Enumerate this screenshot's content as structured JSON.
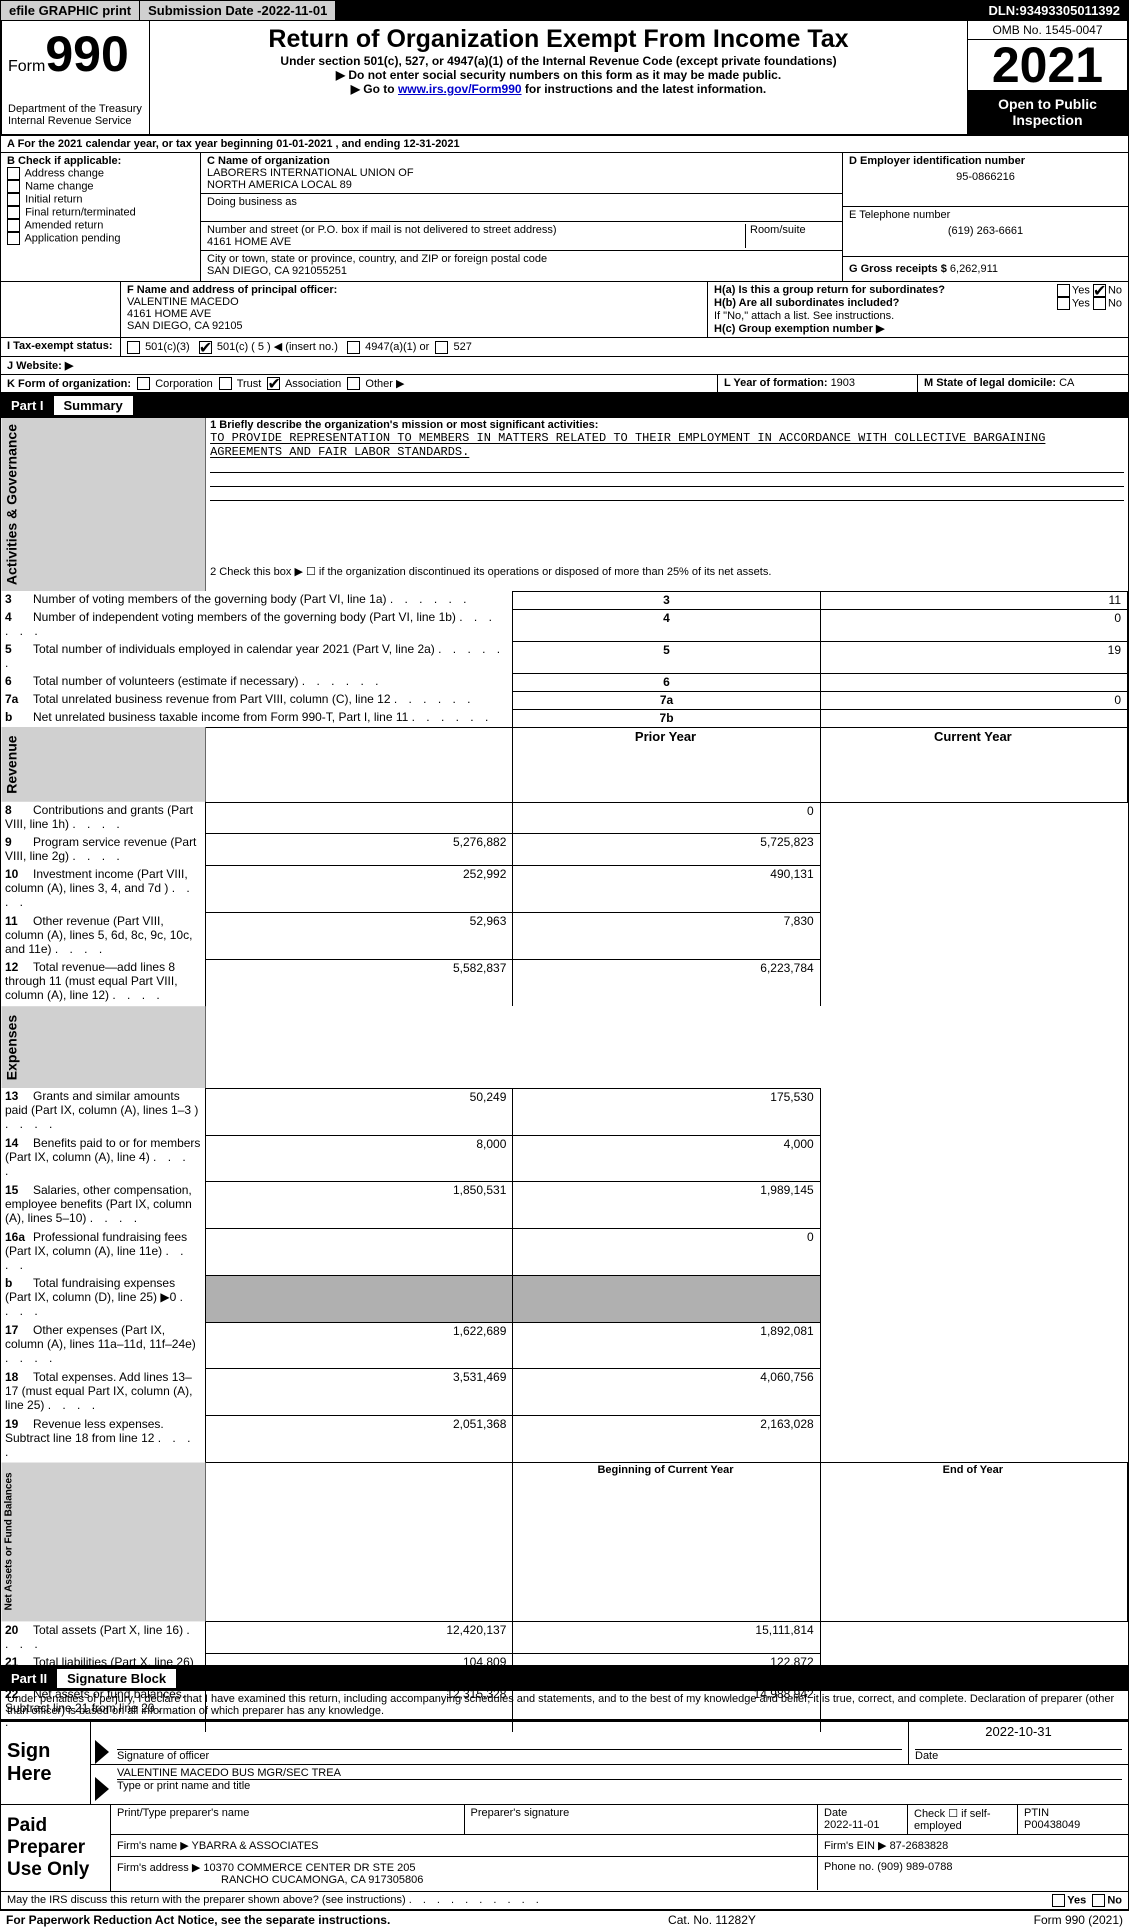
{
  "topbar": {
    "efile": "efile GRAPHIC",
    "print": "print",
    "subdate_label": "Submission Date - ",
    "subdate": "2022-11-01",
    "dln_label": "DLN: ",
    "dln": "93493305011392"
  },
  "header": {
    "form": "Form",
    "form_num": "990",
    "dept": "Department of the Treasury",
    "irs": "Internal Revenue Service",
    "title": "Return of Organization Exempt From Income Tax",
    "subtitle": "Under section 501(c), 527, or 4947(a)(1) of the Internal Revenue Code (except private foundations)",
    "note1": "▶ Do not enter social security numbers on this form as it may be made public.",
    "note2_pre": "▶ Go to ",
    "note2_link": "www.irs.gov/Form990",
    "note2_post": " for instructions and the latest information.",
    "omb": "OMB No. 1545-0047",
    "year": "2021",
    "open": "Open to Public Inspection"
  },
  "periodA": {
    "text_pre": "A For the 2021 calendar year, or tax year beginning ",
    "begin": "01-01-2021",
    "mid": " , and ending ",
    "end": "12-31-2021"
  },
  "sectionB": {
    "label": "B Check if applicable:",
    "items": [
      "Address change",
      "Name change",
      "Initial return",
      "Final return/terminated",
      "Amended return",
      "Application pending"
    ]
  },
  "sectionC": {
    "name_label": "C Name of organization",
    "name1": "LABORERS INTERNATIONAL UNION OF",
    "name2": "NORTH AMERICA LOCAL 89",
    "dba_label": "Doing business as",
    "street_label": "Number and street (or P.O. box if mail is not delivered to street address)",
    "room_label": "Room/suite",
    "street": "4161 HOME AVE",
    "city_label": "City or town, state or province, country, and ZIP or foreign postal code",
    "city": "SAN DIEGO, CA  921055251"
  },
  "sectionD": {
    "label": "D Employer identification number",
    "ein": "95-0866216",
    "phone_label": "E Telephone number",
    "phone": "(619) 263-6661",
    "gross_label": "G Gross receipts $ ",
    "gross": "6,262,911"
  },
  "sectionF": {
    "label": "F Name and address of principal officer:",
    "name": "VALENTINE MACEDO",
    "street": "4161 HOME AVE",
    "city": "SAN DIEGO, CA  92105"
  },
  "sectionH": {
    "ha": "H(a) Is this a group return for subordinates?",
    "hb": "H(b) Are all subordinates included?",
    "hb_note": "If \"No,\" attach a list. See instructions.",
    "hc": "H(c) Group exemption number ▶",
    "yes": "Yes",
    "no": "No"
  },
  "sectionI": {
    "label": "I Tax-exempt status:",
    "opt1": "501(c)(3)",
    "opt2": "501(c) ( 5 ) ◀ (insert no.)",
    "opt3": "4947(a)(1) or",
    "opt4": "527"
  },
  "sectionJ": {
    "label": "J  Website: ▶"
  },
  "sectionK": {
    "label": "K Form of organization:",
    "opts": [
      "Corporation",
      "Trust",
      "Association",
      "Other ▶"
    ],
    "checked_idx": 2
  },
  "sectionL": {
    "label": "L Year of formation: ",
    "val": "1903"
  },
  "sectionM": {
    "label": "M State of legal domicile: ",
    "val": "CA"
  },
  "part1": {
    "label": "Part I",
    "title": "Summary"
  },
  "summary": {
    "line1_label": "1   Briefly describe the organization's mission or most significant activities:",
    "mission": "TO PROVIDE REPRESENTATION TO MEMBERS IN MATTERS RELATED TO THEIR EMPLOYMENT IN ACCORDANCE WITH COLLECTIVE BARGAINING AGREEMENTS AND FAIR LABOR STANDARDS.",
    "line2": "2   Check this box ▶ ☐ if the organization discontinued its operations or disposed of more than 25% of its net assets.",
    "rows_act": [
      {
        "n": "3",
        "label": "Number of voting members of the governing body (Part VI, line 1a)",
        "box": "3",
        "val": "11"
      },
      {
        "n": "4",
        "label": "Number of independent voting members of the governing body (Part VI, line 1b)",
        "box": "4",
        "val": "0"
      },
      {
        "n": "5",
        "label": "Total number of individuals employed in calendar year 2021 (Part V, line 2a)",
        "box": "5",
        "val": "19"
      },
      {
        "n": "6",
        "label": "Total number of volunteers (estimate if necessary)",
        "box": "6",
        "val": ""
      },
      {
        "n": "7a",
        "label": "Total unrelated business revenue from Part VIII, column (C), line 12",
        "box": "7a",
        "val": "0"
      },
      {
        "n": "b",
        "label": "Net unrelated business taxable income from Form 990-T, Part I, line 11",
        "box": "7b",
        "val": ""
      }
    ],
    "hdr_prior": "Prior Year",
    "hdr_curr": "Current Year",
    "rows_rev": [
      {
        "n": "8",
        "label": "Contributions and grants (Part VIII, line 1h)",
        "p": "",
        "c": "0"
      },
      {
        "n": "9",
        "label": "Program service revenue (Part VIII, line 2g)",
        "p": "5,276,882",
        "c": "5,725,823"
      },
      {
        "n": "10",
        "label": "Investment income (Part VIII, column (A), lines 3, 4, and 7d )",
        "p": "252,992",
        "c": "490,131"
      },
      {
        "n": "11",
        "label": "Other revenue (Part VIII, column (A), lines 5, 6d, 8c, 9c, 10c, and 11e)",
        "p": "52,963",
        "c": "7,830"
      },
      {
        "n": "12",
        "label": "Total revenue—add lines 8 through 11 (must equal Part VIII, column (A), line 12)",
        "p": "5,582,837",
        "c": "6,223,784"
      }
    ],
    "rows_exp": [
      {
        "n": "13",
        "label": "Grants and similar amounts paid (Part IX, column (A), lines 1–3 )",
        "p": "50,249",
        "c": "175,530"
      },
      {
        "n": "14",
        "label": "Benefits paid to or for members (Part IX, column (A), line 4)",
        "p": "8,000",
        "c": "4,000"
      },
      {
        "n": "15",
        "label": "Salaries, other compensation, employee benefits (Part IX, column (A), lines 5–10)",
        "p": "1,850,531",
        "c": "1,989,145"
      },
      {
        "n": "16a",
        "label": "Professional fundraising fees (Part IX, column (A), line 11e)",
        "p": "",
        "c": "0"
      },
      {
        "n": "b",
        "label": "Total fundraising expenses (Part IX, column (D), line 25) ▶0",
        "p": "GRAY",
        "c": "GRAY"
      },
      {
        "n": "17",
        "label": "Other expenses (Part IX, column (A), lines 11a–11d, 11f–24e)",
        "p": "1,622,689",
        "c": "1,892,081"
      },
      {
        "n": "18",
        "label": "Total expenses. Add lines 13–17 (must equal Part IX, column (A), line 25)",
        "p": "3,531,469",
        "c": "4,060,756"
      },
      {
        "n": "19",
        "label": "Revenue less expenses. Subtract line 18 from line 12",
        "p": "2,051,368",
        "c": "2,163,028"
      }
    ],
    "hdr_bcy": "Beginning of Current Year",
    "hdr_eoy": "End of Year",
    "rows_net": [
      {
        "n": "20",
        "label": "Total assets (Part X, line 16)",
        "p": "12,420,137",
        "c": "15,111,814"
      },
      {
        "n": "21",
        "label": "Total liabilities (Part X, line 26)",
        "p": "104,809",
        "c": "122,872"
      },
      {
        "n": "22",
        "label": "Net assets or fund balances. Subtract line 21 from line 20",
        "p": "12,315,328",
        "c": "14,988,942"
      }
    ],
    "vtab_act": "Activities & Governance",
    "vtab_rev": "Revenue",
    "vtab_exp": "Expenses",
    "vtab_net": "Net Assets or Fund Balances"
  },
  "part2": {
    "label": "Part II",
    "title": "Signature Block",
    "penalties": "Under penalties of perjury, I declare that I have examined this return, including accompanying schedules and statements, and to the best of my knowledge and belief, it is true, correct, and complete. Declaration of preparer (other than officer) is based on all information of which preparer has any knowledge."
  },
  "sign": {
    "here": "Sign Here",
    "sig_officer": "Signature of officer",
    "sig_date": "2022-10-31",
    "date_lbl": "Date",
    "officer_name": "VALENTINE MACEDO  BUS MGR/SEC TREA",
    "officer_lbl": "Type or print name and title"
  },
  "paid": {
    "label": "Paid Preparer Use Only",
    "pt_name_lbl": "Print/Type preparer's name",
    "sig_lbl": "Preparer's signature",
    "date_lbl": "Date",
    "date": "2022-11-01",
    "check_lbl": "Check ☐ if self-employed",
    "ptin_lbl": "PTIN",
    "ptin": "P00438049",
    "firm_name_lbl": "Firm's name    ▶ ",
    "firm_name": "YBARRA & ASSOCIATES",
    "firm_ein_lbl": "Firm's EIN ▶ ",
    "firm_ein": "87-2683828",
    "firm_addr_lbl": "Firm's address ▶ ",
    "firm_addr1": "10370 COMMERCE CENTER DR STE 205",
    "firm_addr2": "RANCHO CUCAMONGA, CA  917305806",
    "phone_lbl": "Phone no. ",
    "phone": "(909) 989-0788"
  },
  "discuss": {
    "text": "May the IRS discuss this return with the preparer shown above? (see instructions)",
    "yes": "Yes",
    "no": "No"
  },
  "footer": {
    "left": "For Paperwork Reduction Act Notice, see the separate instructions.",
    "mid": "Cat. No. 11282Y",
    "right": "Form 990 (2021)"
  },
  "style": {
    "link_color": "#0000cc",
    "black": "#000000",
    "gray_btn": "#d0d0d0",
    "gray_cell": "#b0b0b0"
  }
}
